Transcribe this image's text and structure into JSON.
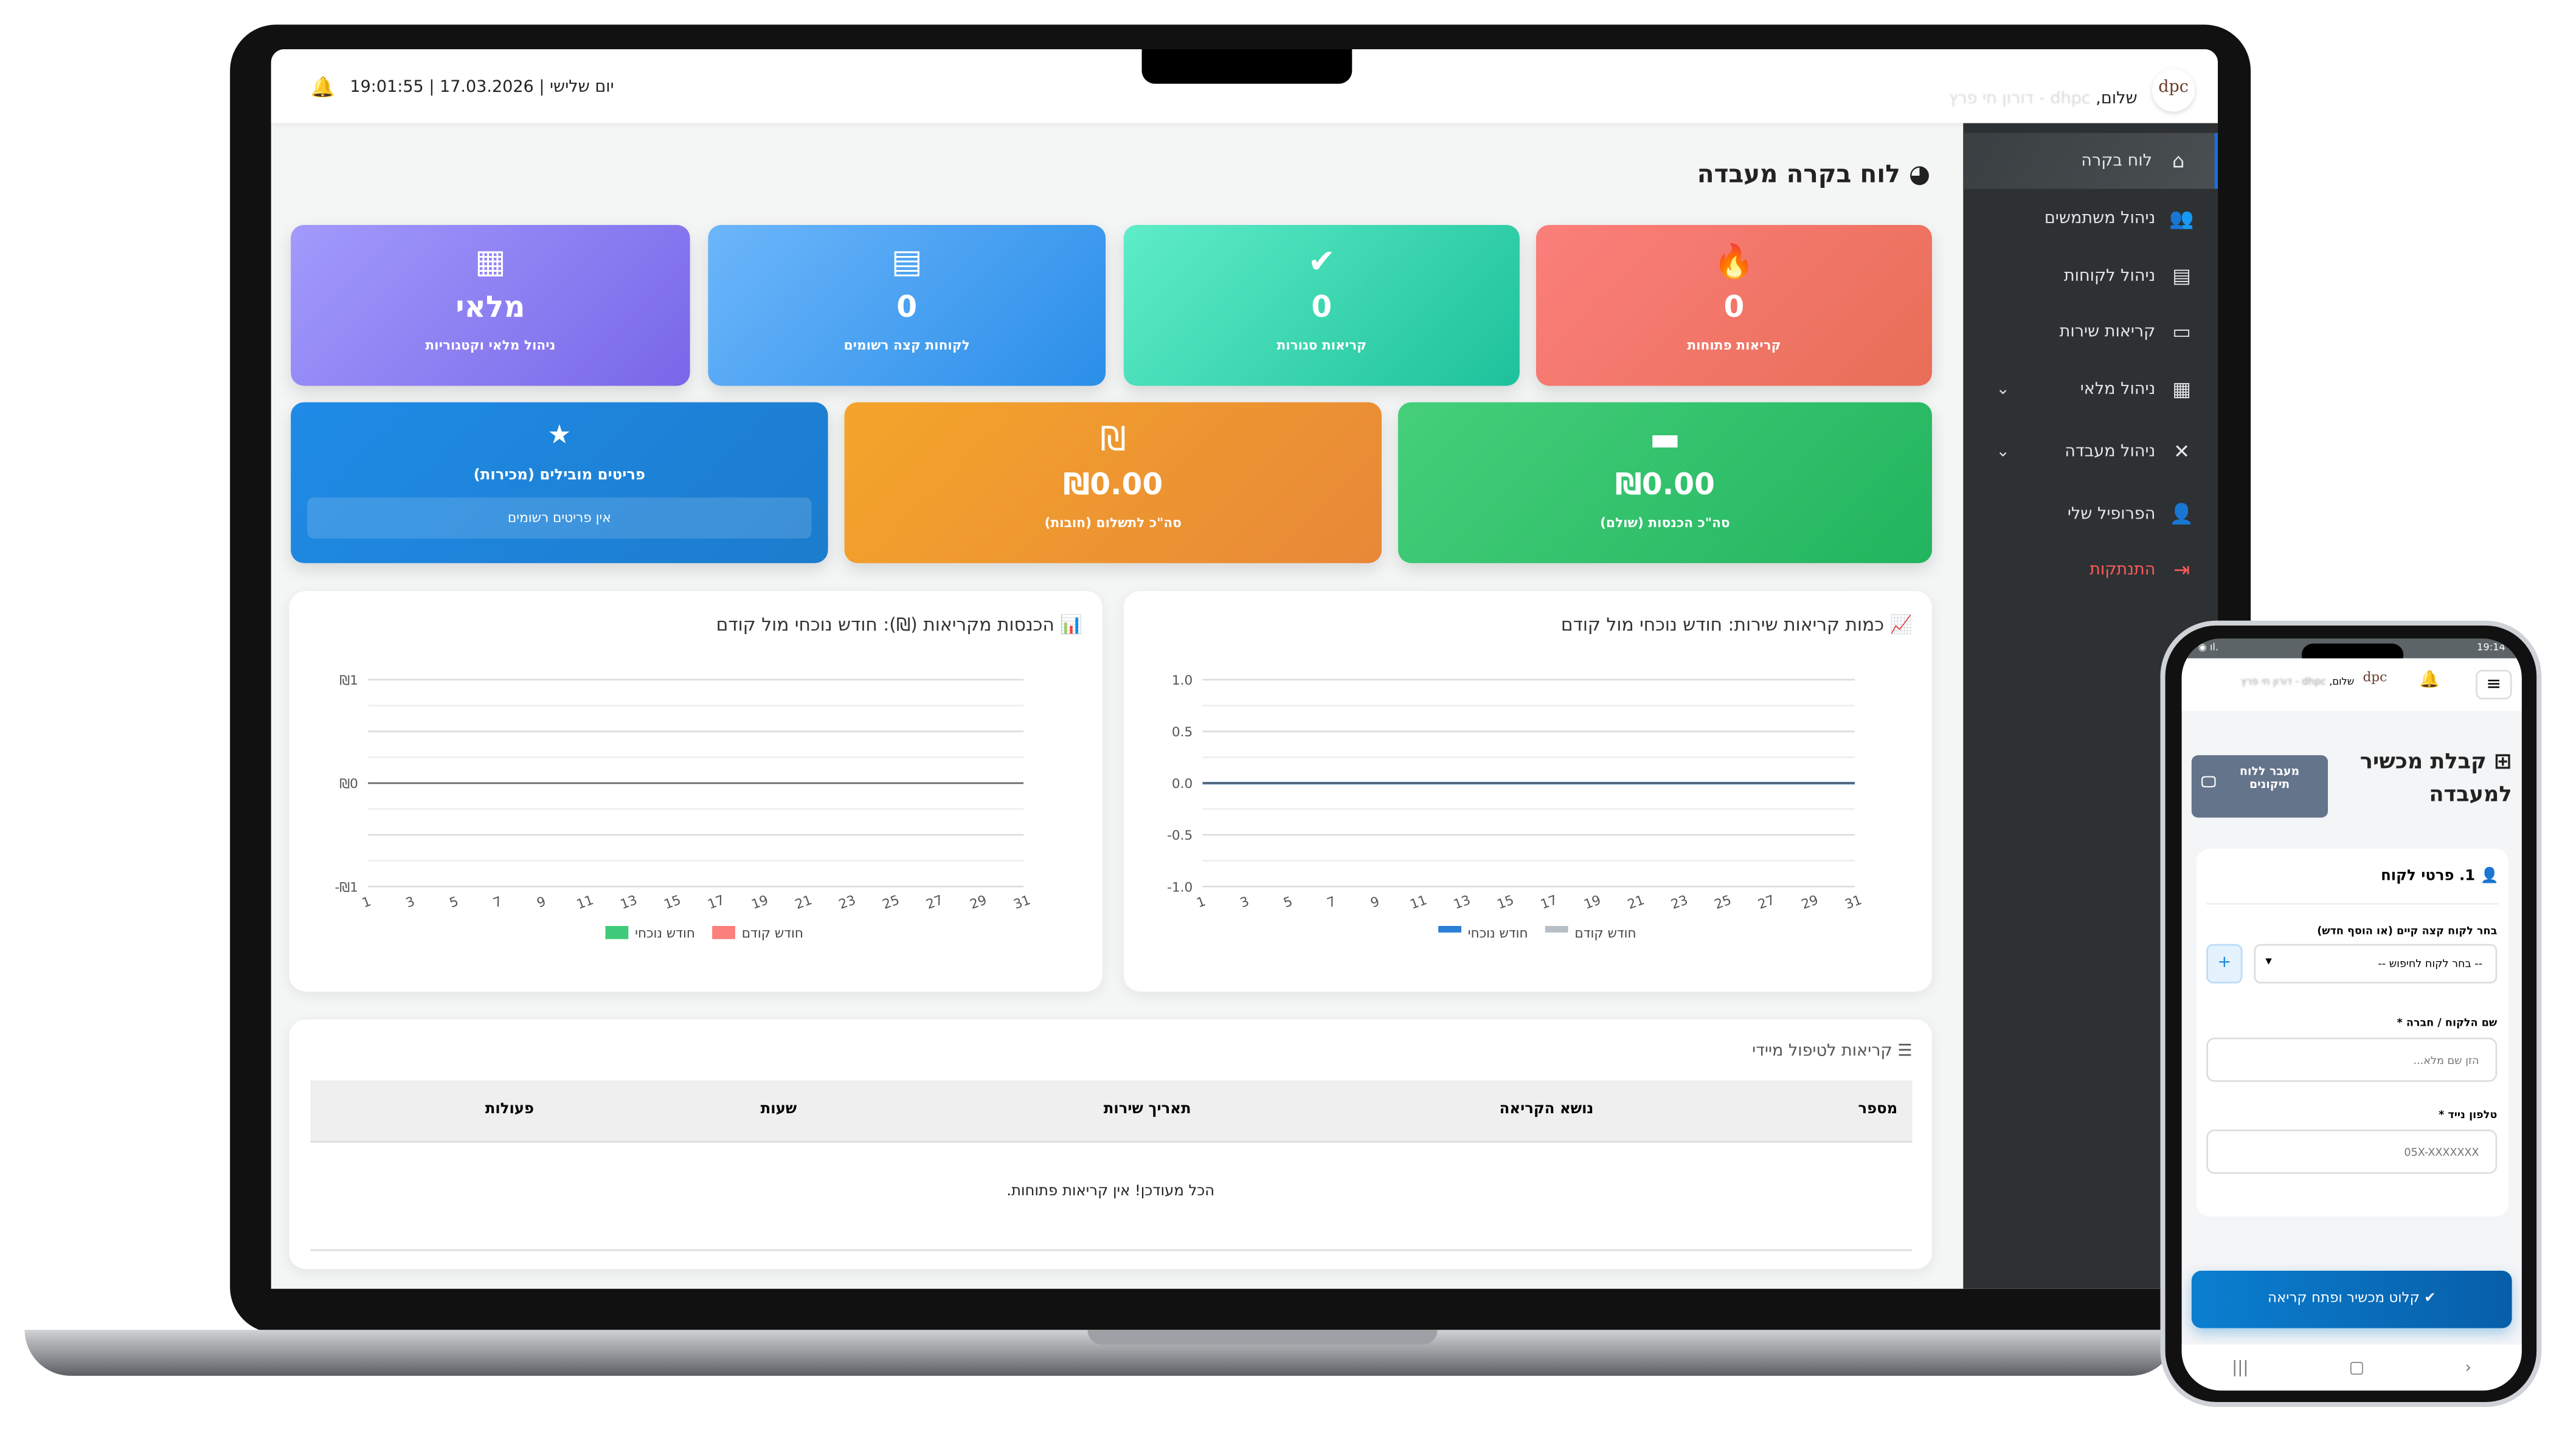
{
  "laptop": {
    "topbar": {
      "datetime": "19:01:55 | יום שלישי | 17.03.2026",
      "greeting": "שלום,",
      "user_name": "dhpc - דורון חי פרץ",
      "logo_text": "dpc"
    },
    "sidebar": {
      "items": [
        {
          "label": "לוח בקרה",
          "icon": "home-icon",
          "active": true
        },
        {
          "label": "ניהול משתמשים",
          "icon": "users-cog-icon"
        },
        {
          "label": "ניהול לקוחות",
          "icon": "address-book-icon"
        },
        {
          "label": "קריאות שירות",
          "icon": "ticket-icon"
        },
        {
          "label": "ניהול מלאי",
          "icon": "boxes-icon",
          "expandable": true
        },
        {
          "label": "ניהול מעבדה",
          "icon": "tools-icon",
          "expandable": true
        },
        {
          "label": "הפרופיל שלי",
          "icon": "user-edit-icon"
        },
        {
          "label": "התנתקות",
          "icon": "logout-icon",
          "color": "#ff5a5a"
        }
      ]
    },
    "page_title": "לוח בקרה מעבדה",
    "stat_cards": [
      {
        "value": "0",
        "label": "קריאות פתוחות",
        "icon": "fire-icon",
        "colors": [
          "#fb7f7b",
          "#e86e57"
        ]
      },
      {
        "value": "0",
        "label": "קריאות סגורות",
        "icon": "check-circle-icon",
        "colors": [
          "#5eedc8",
          "#1dc19b"
        ]
      },
      {
        "value": "0",
        "label": "לקוחות קצה רשומים",
        "icon": "contact-card-icon",
        "colors": [
          "#6cb6fb",
          "#2a8ee8"
        ]
      },
      {
        "value": "מלאי",
        "label": "ניהול מלאי וקטגוריות",
        "icon": "boxes-icon",
        "colors": [
          "#a29afc",
          "#7867e8"
        ]
      }
    ],
    "money_cards": [
      {
        "value": "₪0.00",
        "label": "סה\"כ הכנסות (שולם)",
        "icon": "wallet-icon",
        "colors": [
          "#45cf7b",
          "#22b45e"
        ]
      },
      {
        "value": "₪0.00",
        "label": "סה\"כ לתשלום (חובות)",
        "icon": "shekel-icon",
        "colors": [
          "#f4a52a",
          "#e88838"
        ]
      },
      {
        "label": "פריטים מובילים (מכירות)",
        "empty": "אין פריטים רשומים",
        "icon": "star-icon",
        "colors": [
          "#1f8be6",
          "#1c7ccd"
        ]
      }
    ],
    "table": {
      "title": "קריאות לטיפול מיידי",
      "columns": [
        "מספר",
        "נושא הקריאה",
        "תאריך שירות",
        "שעות",
        "פעולות"
      ],
      "empty_message": "הכל מעודכן! אין קריאות פתוחות."
    }
  },
  "chart_data": [
    {
      "type": "line",
      "title": "כמות קריאות שירות: חודש נוכחי מול קודם",
      "x": [
        1,
        2,
        3,
        4,
        5,
        6,
        7,
        8,
        9,
        10,
        11,
        12,
        13,
        14,
        15,
        16,
        17,
        18,
        19,
        20,
        21,
        22,
        23,
        24,
        25,
        26,
        27,
        28,
        29,
        30,
        31
      ],
      "xtick_labels": [
        "1",
        "3",
        "5",
        "7",
        "9",
        "11",
        "13",
        "15",
        "17",
        "19",
        "21",
        "23",
        "25",
        "27",
        "29",
        "31"
      ],
      "yticks": [
        "1.0",
        "0.5",
        "0.0",
        "-0.5",
        "-1.0"
      ],
      "ylim": [
        -1,
        1
      ],
      "grid": true,
      "legend": "bottom",
      "series": [
        {
          "name": "חודש נוכחי",
          "color": "#2b7fd6",
          "values": [
            0,
            0,
            0,
            0,
            0,
            0,
            0,
            0,
            0,
            0,
            0,
            0,
            0,
            0,
            0,
            0,
            0,
            0,
            0,
            0,
            0,
            0,
            0,
            0,
            0,
            0,
            0,
            0,
            0,
            0,
            0
          ]
        },
        {
          "name": "חודש קודם",
          "color": "#b7bec6",
          "values": [
            0,
            0,
            0,
            0,
            0,
            0,
            0,
            0,
            0,
            0,
            0,
            0,
            0,
            0,
            0,
            0,
            0,
            0,
            0,
            0,
            0,
            0,
            0,
            0,
            0,
            0,
            0,
            0,
            0,
            0,
            0
          ]
        }
      ]
    },
    {
      "type": "bar",
      "title": "הכנסות מקריאות (₪): חודש נוכחי מול קודם",
      "x": [
        1,
        2,
        3,
        4,
        5,
        6,
        7,
        8,
        9,
        10,
        11,
        12,
        13,
        14,
        15,
        16,
        17,
        18,
        19,
        20,
        21,
        22,
        23,
        24,
        25,
        26,
        27,
        28,
        29,
        30,
        31
      ],
      "xtick_labels": [
        "1",
        "3",
        "5",
        "7",
        "9",
        "11",
        "13",
        "15",
        "17",
        "19",
        "21",
        "23",
        "25",
        "27",
        "29",
        "31"
      ],
      "yticks": [
        "₪1",
        "₪0",
        "-₪1"
      ],
      "ylim": [
        -1,
        1
      ],
      "grid": true,
      "legend": "bottom",
      "series": [
        {
          "name": "חודש נוכחי",
          "color": "#3fcb79",
          "values": [
            0,
            0,
            0,
            0,
            0,
            0,
            0,
            0,
            0,
            0,
            0,
            0,
            0,
            0,
            0,
            0,
            0,
            0,
            0,
            0,
            0,
            0,
            0,
            0,
            0,
            0,
            0,
            0,
            0,
            0,
            0
          ]
        },
        {
          "name": "חודש קודם",
          "color": "#fb7f7b",
          "values": [
            0,
            0,
            0,
            0,
            0,
            0,
            0,
            0,
            0,
            0,
            0,
            0,
            0,
            0,
            0,
            0,
            0,
            0,
            0,
            0,
            0,
            0,
            0,
            0,
            0,
            0,
            0,
            0,
            0,
            0,
            0
          ]
        }
      ]
    }
  ],
  "phone": {
    "status_time": "19:14",
    "greeting": "שלום,",
    "user_name": "dhpc - דורון חי פרץ",
    "logo_text": "dpc",
    "title": "קבלת מכשיר למעבדה",
    "board_button": "מעבר ללוח תיקונים",
    "section_title": "1. פרטי לקוח",
    "select_label": "בחר לקוח קצה קיים (או הוסף חדש)",
    "select_value": "-- בחר לקוח לחיפוש --",
    "name_label": "שם הלקוח / חברה *",
    "name_placeholder": "הזן שם מלא...",
    "phone_label": "טלפון נייד *",
    "phone_placeholder": "05X-XXXXXXX",
    "submit": "קלוט מכשיר ופתח קריאה",
    "accent": "#0a84d6"
  }
}
